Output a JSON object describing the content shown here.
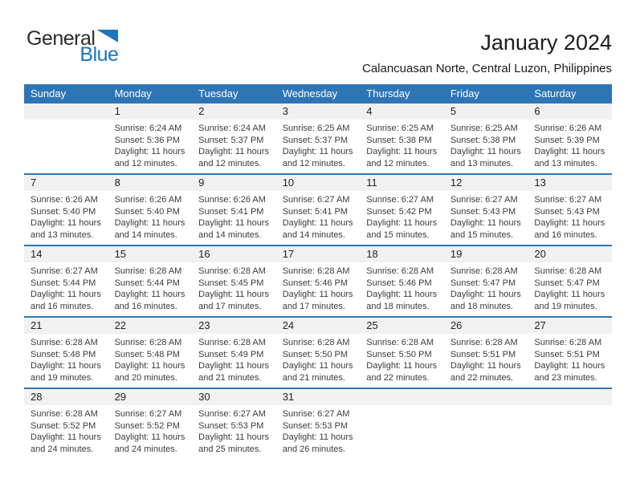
{
  "logo": {
    "general": "General",
    "blue": "Blue",
    "triangle_color": "#1b75bc"
  },
  "header": {
    "title": "January 2024",
    "location": "Calancuasan Norte, Central Luzon, Philippines"
  },
  "colors": {
    "weekday_header_blue": "#2e75b6",
    "week_divider_blue": "#2e75b6",
    "date_band_gray": "#f1f1f1",
    "logo_blue": "#1b75bc"
  },
  "calendar": {
    "weekdays": [
      "Sunday",
      "Monday",
      "Tuesday",
      "Wednesday",
      "Thursday",
      "Friday",
      "Saturday"
    ],
    "weeks": [
      [
        null,
        {
          "day": "1",
          "lines": [
            "Sunrise: 6:24 AM",
            "Sunset: 5:36 PM",
            "Daylight: 11 hours",
            "and 12 minutes."
          ]
        },
        {
          "day": "2",
          "lines": [
            "Sunrise: 6:24 AM",
            "Sunset: 5:37 PM",
            "Daylight: 11 hours",
            "and 12 minutes."
          ]
        },
        {
          "day": "3",
          "lines": [
            "Sunrise: 6:25 AM",
            "Sunset: 5:37 PM",
            "Daylight: 11 hours",
            "and 12 minutes."
          ]
        },
        {
          "day": "4",
          "lines": [
            "Sunrise: 6:25 AM",
            "Sunset: 5:38 PM",
            "Daylight: 11 hours",
            "and 12 minutes."
          ]
        },
        {
          "day": "5",
          "lines": [
            "Sunrise: 6:25 AM",
            "Sunset: 5:38 PM",
            "Daylight: 11 hours",
            "and 13 minutes."
          ]
        },
        {
          "day": "6",
          "lines": [
            "Sunrise: 6:26 AM",
            "Sunset: 5:39 PM",
            "Daylight: 11 hours",
            "and 13 minutes."
          ]
        }
      ],
      [
        {
          "day": "7",
          "lines": [
            "Sunrise: 6:26 AM",
            "Sunset: 5:40 PM",
            "Daylight: 11 hours",
            "and 13 minutes."
          ]
        },
        {
          "day": "8",
          "lines": [
            "Sunrise: 6:26 AM",
            "Sunset: 5:40 PM",
            "Daylight: 11 hours",
            "and 14 minutes."
          ]
        },
        {
          "day": "9",
          "lines": [
            "Sunrise: 6:26 AM",
            "Sunset: 5:41 PM",
            "Daylight: 11 hours",
            "and 14 minutes."
          ]
        },
        {
          "day": "10",
          "lines": [
            "Sunrise: 6:27 AM",
            "Sunset: 5:41 PM",
            "Daylight: 11 hours",
            "and 14 minutes."
          ]
        },
        {
          "day": "11",
          "lines": [
            "Sunrise: 6:27 AM",
            "Sunset: 5:42 PM",
            "Daylight: 11 hours",
            "and 15 minutes."
          ]
        },
        {
          "day": "12",
          "lines": [
            "Sunrise: 6:27 AM",
            "Sunset: 5:43 PM",
            "Daylight: 11 hours",
            "and 15 minutes."
          ]
        },
        {
          "day": "13",
          "lines": [
            "Sunrise: 6:27 AM",
            "Sunset: 5:43 PM",
            "Daylight: 11 hours",
            "and 16 minutes."
          ]
        }
      ],
      [
        {
          "day": "14",
          "lines": [
            "Sunrise: 6:27 AM",
            "Sunset: 5:44 PM",
            "Daylight: 11 hours",
            "and 16 minutes."
          ]
        },
        {
          "day": "15",
          "lines": [
            "Sunrise: 6:28 AM",
            "Sunset: 5:44 PM",
            "Daylight: 11 hours",
            "and 16 minutes."
          ]
        },
        {
          "day": "16",
          "lines": [
            "Sunrise: 6:28 AM",
            "Sunset: 5:45 PM",
            "Daylight: 11 hours",
            "and 17 minutes."
          ]
        },
        {
          "day": "17",
          "lines": [
            "Sunrise: 6:28 AM",
            "Sunset: 5:46 PM",
            "Daylight: 11 hours",
            "and 17 minutes."
          ]
        },
        {
          "day": "18",
          "lines": [
            "Sunrise: 6:28 AM",
            "Sunset: 5:46 PM",
            "Daylight: 11 hours",
            "and 18 minutes."
          ]
        },
        {
          "day": "19",
          "lines": [
            "Sunrise: 6:28 AM",
            "Sunset: 5:47 PM",
            "Daylight: 11 hours",
            "and 18 minutes."
          ]
        },
        {
          "day": "20",
          "lines": [
            "Sunrise: 6:28 AM",
            "Sunset: 5:47 PM",
            "Daylight: 11 hours",
            "and 19 minutes."
          ]
        }
      ],
      [
        {
          "day": "21",
          "lines": [
            "Sunrise: 6:28 AM",
            "Sunset: 5:48 PM",
            "Daylight: 11 hours",
            "and 19 minutes."
          ]
        },
        {
          "day": "22",
          "lines": [
            "Sunrise: 6:28 AM",
            "Sunset: 5:48 PM",
            "Daylight: 11 hours",
            "and 20 minutes."
          ]
        },
        {
          "day": "23",
          "lines": [
            "Sunrise: 6:28 AM",
            "Sunset: 5:49 PM",
            "Daylight: 11 hours",
            "and 21 minutes."
          ]
        },
        {
          "day": "24",
          "lines": [
            "Sunrise: 6:28 AM",
            "Sunset: 5:50 PM",
            "Daylight: 11 hours",
            "and 21 minutes."
          ]
        },
        {
          "day": "25",
          "lines": [
            "Sunrise: 6:28 AM",
            "Sunset: 5:50 PM",
            "Daylight: 11 hours",
            "and 22 minutes."
          ]
        },
        {
          "day": "26",
          "lines": [
            "Sunrise: 6:28 AM",
            "Sunset: 5:51 PM",
            "Daylight: 11 hours",
            "and 22 minutes."
          ]
        },
        {
          "day": "27",
          "lines": [
            "Sunrise: 6:28 AM",
            "Sunset: 5:51 PM",
            "Daylight: 11 hours",
            "and 23 minutes."
          ]
        }
      ],
      [
        {
          "day": "28",
          "lines": [
            "Sunrise: 6:28 AM",
            "Sunset: 5:52 PM",
            "Daylight: 11 hours",
            "and 24 minutes."
          ]
        },
        {
          "day": "29",
          "lines": [
            "Sunrise: 6:27 AM",
            "Sunset: 5:52 PM",
            "Daylight: 11 hours",
            "and 24 minutes."
          ]
        },
        {
          "day": "30",
          "lines": [
            "Sunrise: 6:27 AM",
            "Sunset: 5:53 PM",
            "Daylight: 11 hours",
            "and 25 minutes."
          ]
        },
        {
          "day": "31",
          "lines": [
            "Sunrise: 6:27 AM",
            "Sunset: 5:53 PM",
            "Daylight: 11 hours",
            "and 26 minutes."
          ]
        },
        null,
        null,
        null
      ]
    ]
  }
}
